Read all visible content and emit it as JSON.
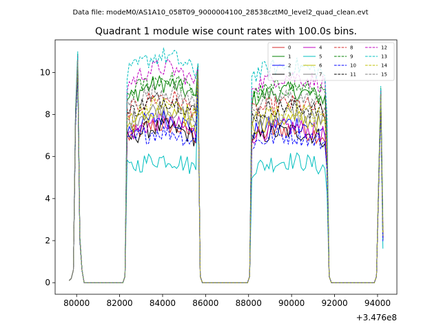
{
  "suptitle": "Data file: modeM0/AS1A10_058T09_9000004100_28538cztM0_level2_quad_clean.evt",
  "chart_data": {
    "type": "line",
    "title": "Quadrant 1 module wise count rates with 100.0s bins.",
    "xlabel": "",
    "ylabel": "",
    "offset_label": "+3.476e8",
    "xlim": [
      79000,
      94900
    ],
    "ylim": [
      -0.55,
      11.55
    ],
    "xticks": [
      80000,
      82000,
      84000,
      86000,
      88000,
      90000,
      92000,
      94000
    ],
    "xtick_labels": [
      "80000",
      "82000",
      "84000",
      "86000",
      "88000",
      "90000",
      "92000",
      "94000"
    ],
    "yticks": [
      0,
      2,
      4,
      6,
      8,
      10
    ],
    "ytick_labels": [
      "0",
      "2",
      "4",
      "6",
      "8",
      "10"
    ],
    "legend_placement": "top-right",
    "segments": [
      {
        "x_start": 79650,
        "x_end": 80350
      },
      {
        "x_start": 82350,
        "x_end": 85650
      },
      {
        "x_start": 88150,
        "x_end": 91650
      },
      {
        "x_start": 94050,
        "x_end": 94250
      }
    ],
    "series": [
      {
        "name": "0",
        "color": "#d62728",
        "dash": "solid",
        "level": 6.9,
        "peak": 10.4
      },
      {
        "name": "1",
        "color": "#008000",
        "dash": "solid",
        "level": 8.7,
        "peak": 10.9
      },
      {
        "name": "2",
        "color": "#0000ff",
        "dash": "solid",
        "level": 7.2,
        "peak": 10.6
      },
      {
        "name": "3",
        "color": "#000000",
        "dash": "solid",
        "level": 6.8,
        "peak": 10.2
      },
      {
        "name": "4",
        "color": "#bf00bf",
        "dash": "solid",
        "level": 7.0,
        "peak": 10.5
      },
      {
        "name": "5",
        "color": "#00bfbf",
        "dash": "solid",
        "level": 5.4,
        "peak": 10.0
      },
      {
        "name": "6",
        "color": "#bfbf00",
        "dash": "solid",
        "level": 7.4,
        "peak": 10.3
      },
      {
        "name": "7",
        "color": "#7f7f7f",
        "dash": "solid",
        "level": 7.6,
        "peak": 10.4
      },
      {
        "name": "8",
        "color": "#d62728",
        "dash": "dashed",
        "level": 8.1,
        "peak": 10.6
      },
      {
        "name": "9",
        "color": "#008000",
        "dash": "dashed",
        "level": 8.9,
        "peak": 10.7
      },
      {
        "name": "10",
        "color": "#0000ff",
        "dash": "dashed",
        "level": 6.6,
        "peak": 9.9
      },
      {
        "name": "11",
        "color": "#000000",
        "dash": "dashed",
        "level": 8.0,
        "peak": 10.3
      },
      {
        "name": "12",
        "color": "#bf00bf",
        "dash": "dashed",
        "level": 9.4,
        "peak": 10.8
      },
      {
        "name": "13",
        "color": "#00bfbf",
        "dash": "dashed",
        "level": 9.9,
        "peak": 11.0
      },
      {
        "name": "14",
        "color": "#bfbf00",
        "dash": "dashed",
        "level": 7.8,
        "peak": 10.5
      },
      {
        "name": "15",
        "color": "#7f7f7f",
        "dash": "dashed",
        "level": 8.4,
        "peak": 10.6
      }
    ]
  }
}
